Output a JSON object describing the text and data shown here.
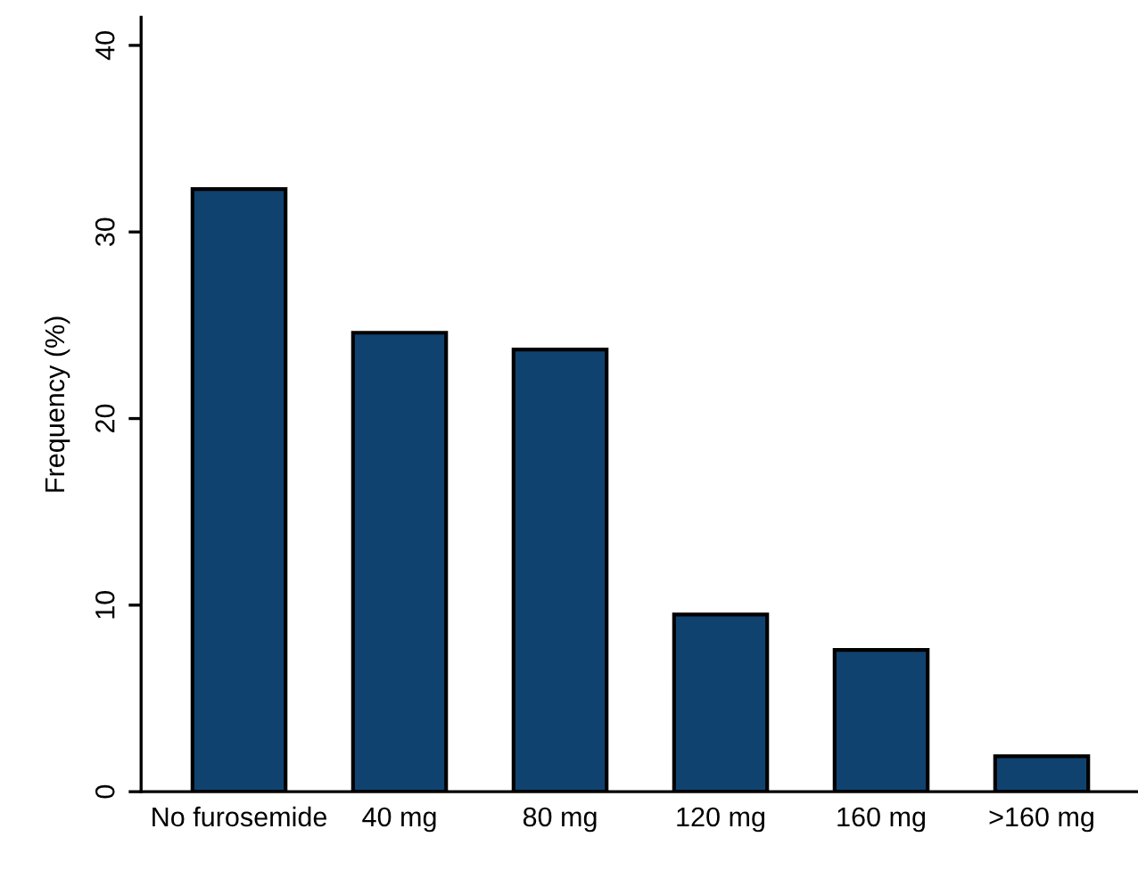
{
  "chart_data": {
    "type": "bar",
    "ylabel": "Frequency (%)",
    "categories": [
      "No furosemide",
      "40 mg",
      "80 mg",
      "120 mg",
      "160 mg",
      ">160 mg"
    ],
    "values": [
      32.3,
      24.6,
      23.7,
      9.5,
      7.6,
      1.9
    ],
    "color": "#10426f",
    "ylim": [
      0,
      41.5
    ],
    "yticks": [
      0,
      10,
      20,
      30,
      40
    ],
    "grid": false,
    "legend": false
  }
}
